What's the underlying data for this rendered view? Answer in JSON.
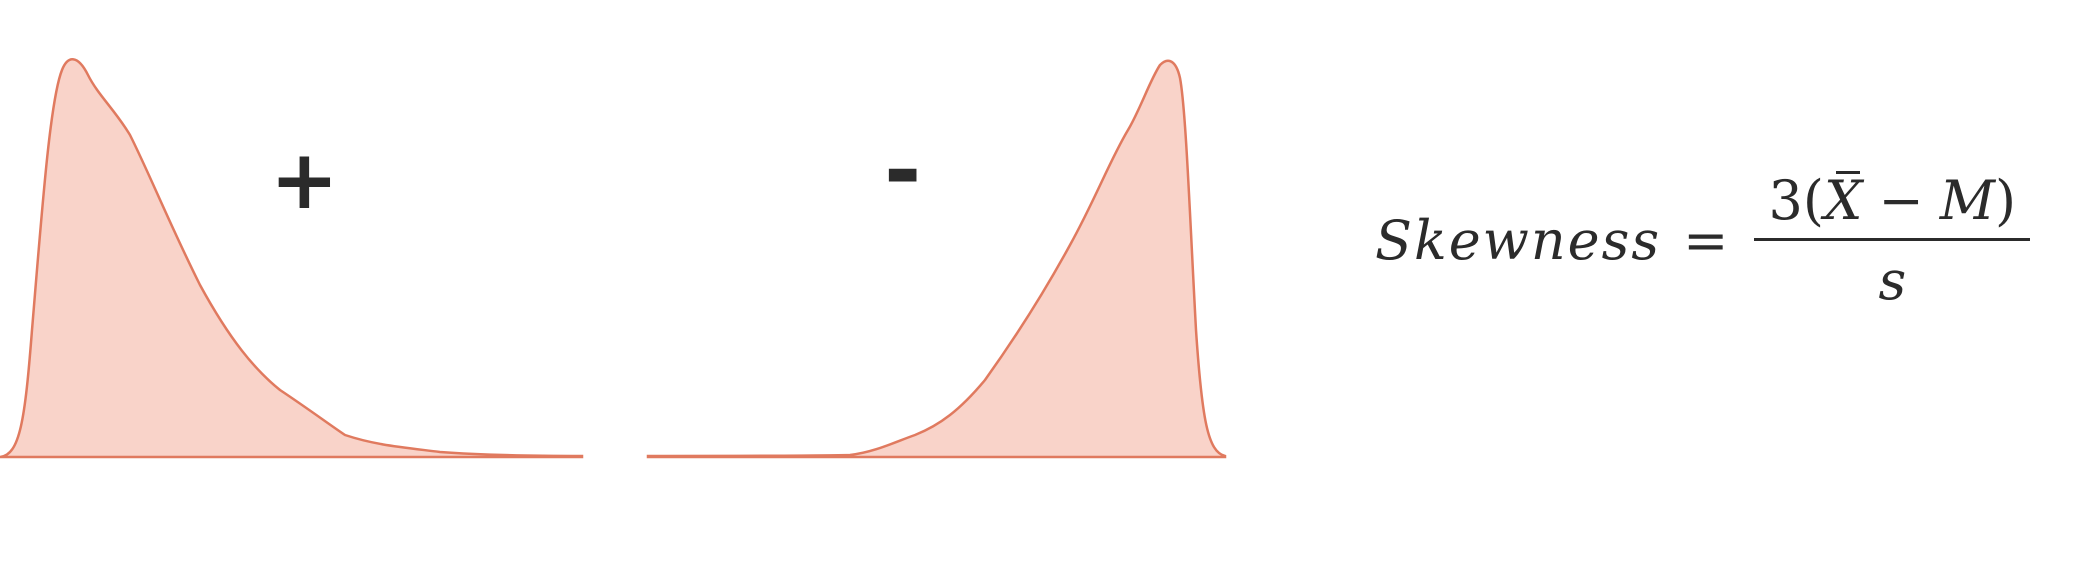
{
  "diagram": {
    "positive_skew": {
      "sign": "+",
      "fill": "#f9d3c9",
      "stroke": "#e07a5f"
    },
    "negative_skew": {
      "sign": "-",
      "fill": "#f9d3c9",
      "stroke": "#e07a5f"
    }
  },
  "formula": {
    "lhs": "Skewness",
    "equals": "=",
    "numerator_lead": "3(",
    "numerator_xbar": "X",
    "numerator_minus": "−",
    "numerator_m": "M",
    "numerator_close": ")",
    "denominator": "s"
  }
}
